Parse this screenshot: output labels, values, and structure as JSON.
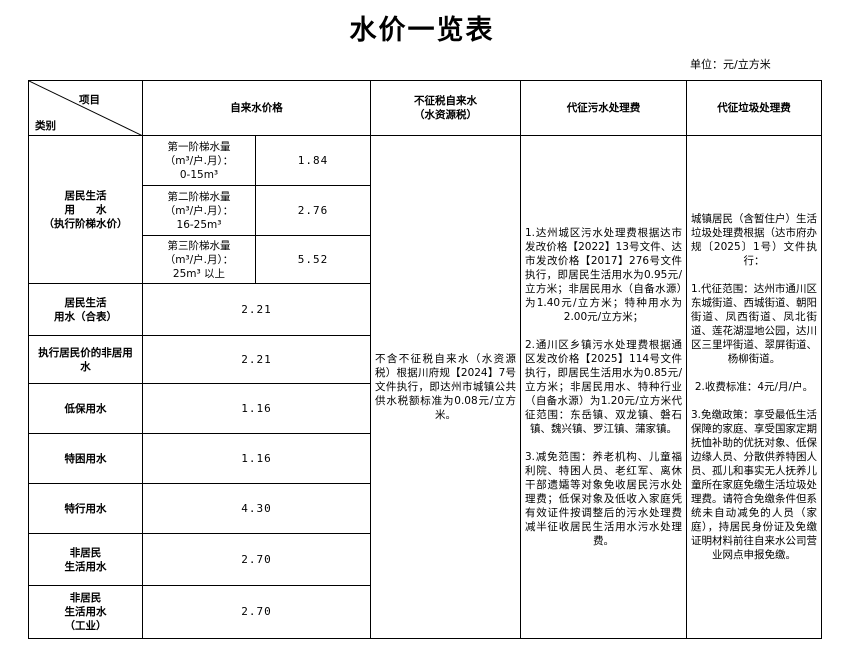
{
  "title": "水价一览表",
  "unit": "单位：元/立方米",
  "header": {
    "item": "项目",
    "category": "类别",
    "tap_price": "自来水价格",
    "resource_tax_1": "不征税自来水",
    "resource_tax_2": "（水资源税）",
    "sewage": "代征污水处理费",
    "garbage": "代征垃圾处理费"
  },
  "residential": {
    "label_1": "居民生活",
    "label_2": "用　　水",
    "label_3": "（执行阶梯水价）",
    "tiers": [
      {
        "l1": "第一阶梯水量",
        "l2": "（m³/户.月）：",
        "l3": "0-15m³",
        "price": "1.84"
      },
      {
        "l1": "第二阶梯水量",
        "l2": "（m³/户.月）：",
        "l3": "16-25m³",
        "price": "2.76"
      },
      {
        "l1": "第三阶梯水量",
        "l2": "（m³/户.月）：",
        "l3": "25m³ 以上",
        "price": "5.52"
      }
    ]
  },
  "rows": [
    {
      "l1": "居民生活",
      "l2": "用水（合表）",
      "price": "2.21"
    },
    {
      "l1": "执行居民价的非居用",
      "l2": "水",
      "price": "2.21"
    },
    {
      "l1": "低保用水",
      "l2": "",
      "price": "1.16"
    },
    {
      "l1": "特困用水",
      "l2": "",
      "price": "1.16"
    },
    {
      "l1": "特行用水",
      "l2": "",
      "price": "4.30"
    },
    {
      "l1": "非居民",
      "l2": "生活用水",
      "price": "2.70"
    },
    {
      "l1": "非居民",
      "l2": "生活用水",
      "l3": "（工业）",
      "price": "2.70"
    }
  ],
  "resource_tax_text": "不含不征税自来水（水资源税）根据川府规【2024】7号文件执行，即达州市城镇公共供水税额标准为0.08元/立方米。",
  "sewage_text": [
    "1.达州城区污水处理费根据达市发改价格【2022】13号文件、达市发改价格【2017】276号文件执行，即居民生活用水为0.95元/立方米；非居民用水（自备水源）为1.40元/立方米；特种用水为2.00元/立方米；",
    "2.通川区乡镇污水处理费根据通区发改价格【2025】114号文件执行，即居民生活用水为0.85元/立方米；非居民用水、特种行业（自备水源）为1.20元/立方米代征范围：东岳镇、双龙镇、磐石镇、魏兴镇、罗江镇、蒲家镇。",
    "3.减免范围：养老机构、儿童福利院、特困人员、老红军、离休干部遗孀等对象免收居民污水处理费；低保对象及低收入家庭凭有效证件按调整后的污水处理费减半征收居民生活用水污水处理费。"
  ],
  "garbage_text": [
    "城镇居民（含暂住户）生活垃圾处理费根据（达市府办规〔2025〕1号）文件执行：",
    "1.代征范围：达州市通川区东城街道、西城街道、朝阳街道、凤西街道、凤北街道、莲花湖湿地公园，达川区三里坪街道、翠屏街道、杨柳街道。",
    "2.收费标准：4元/月/户。",
    "3.免缴政策：享受最低生活保障的家庭、享受国家定期抚恤补助的优抚对象、低保边缘人员、分散供养特困人员、孤儿和事实无人抚养儿童所在家庭免缴生活垃圾处理费。请符合免缴条件但系统未自动减免的人员（家庭），持居民身份证及免缴证明材料前往自来水公司营业网点申报免缴。"
  ]
}
